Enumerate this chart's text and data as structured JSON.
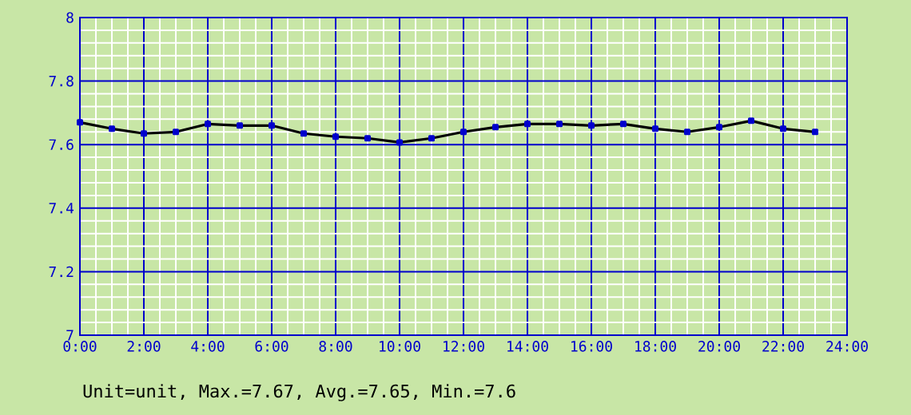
{
  "chart_data": {
    "type": "line",
    "x": [
      0,
      1,
      2,
      3,
      4,
      5,
      6,
      7,
      8,
      9,
      10,
      11,
      12,
      13,
      14,
      15,
      16,
      17,
      18,
      19,
      20,
      21,
      22,
      23
    ],
    "series": [
      {
        "color": "#000000",
        "values": [
          7.67,
          7.65,
          7.635,
          7.64,
          7.665,
          7.66,
          7.66,
          7.635,
          7.625,
          7.62,
          7.607,
          7.62,
          7.64,
          7.655,
          7.665,
          7.665,
          7.66,
          7.665,
          7.65,
          7.64,
          7.655,
          7.675,
          7.65,
          7.64
        ]
      }
    ],
    "xlim": [
      0,
      24
    ],
    "xticks": [
      {
        "value": 0,
        "label": "0:00"
      },
      {
        "value": 2,
        "label": "2:00"
      },
      {
        "value": 4,
        "label": "4:00"
      },
      {
        "value": 6,
        "label": "6:00"
      },
      {
        "value": 8,
        "label": "8:00"
      },
      {
        "value": 10,
        "label": "10:00"
      },
      {
        "value": 12,
        "label": "12:00"
      },
      {
        "value": 14,
        "label": "14:00"
      },
      {
        "value": 16,
        "label": "16:00"
      },
      {
        "value": 18,
        "label": "18:00"
      },
      {
        "value": 20,
        "label": "20:00"
      },
      {
        "value": 22,
        "label": "22:00"
      },
      {
        "value": 24,
        "label": "24:00"
      }
    ],
    "ylim": [
      7,
      8
    ],
    "yticks": [
      7,
      7.2,
      7.4,
      7.6,
      7.8,
      8
    ],
    "grid": true,
    "marker": "square",
    "line_style": "solid",
    "annotations": [
      "Unit=unit, Max.=7.67, Avg.=7.65, Min.=7.6"
    ]
  }
}
